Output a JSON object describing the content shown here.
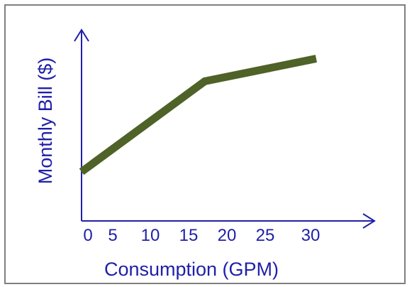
{
  "chart_data": {
    "type": "line",
    "title": "",
    "xlabel": "Consumption (GPM)",
    "ylabel": "Monthly Bill ($)",
    "x_ticks": [
      "0",
      "5",
      "10",
      "15",
      "20",
      "25",
      "30"
    ],
    "x_tick_values": [
      0,
      5,
      10,
      15,
      20,
      25,
      30
    ],
    "xlim": [
      0,
      37
    ],
    "ylim": [
      0,
      100
    ],
    "y_ticks_shown": false,
    "grid": false,
    "colors": {
      "axis": "#1f1fa8",
      "line": "#4f6228",
      "frame": "#7f7f7f"
    },
    "series": [
      {
        "x": [
          0,
          16.7,
          31.8
        ],
        "y": [
          16,
          68,
          81
        ]
      }
    ]
  }
}
